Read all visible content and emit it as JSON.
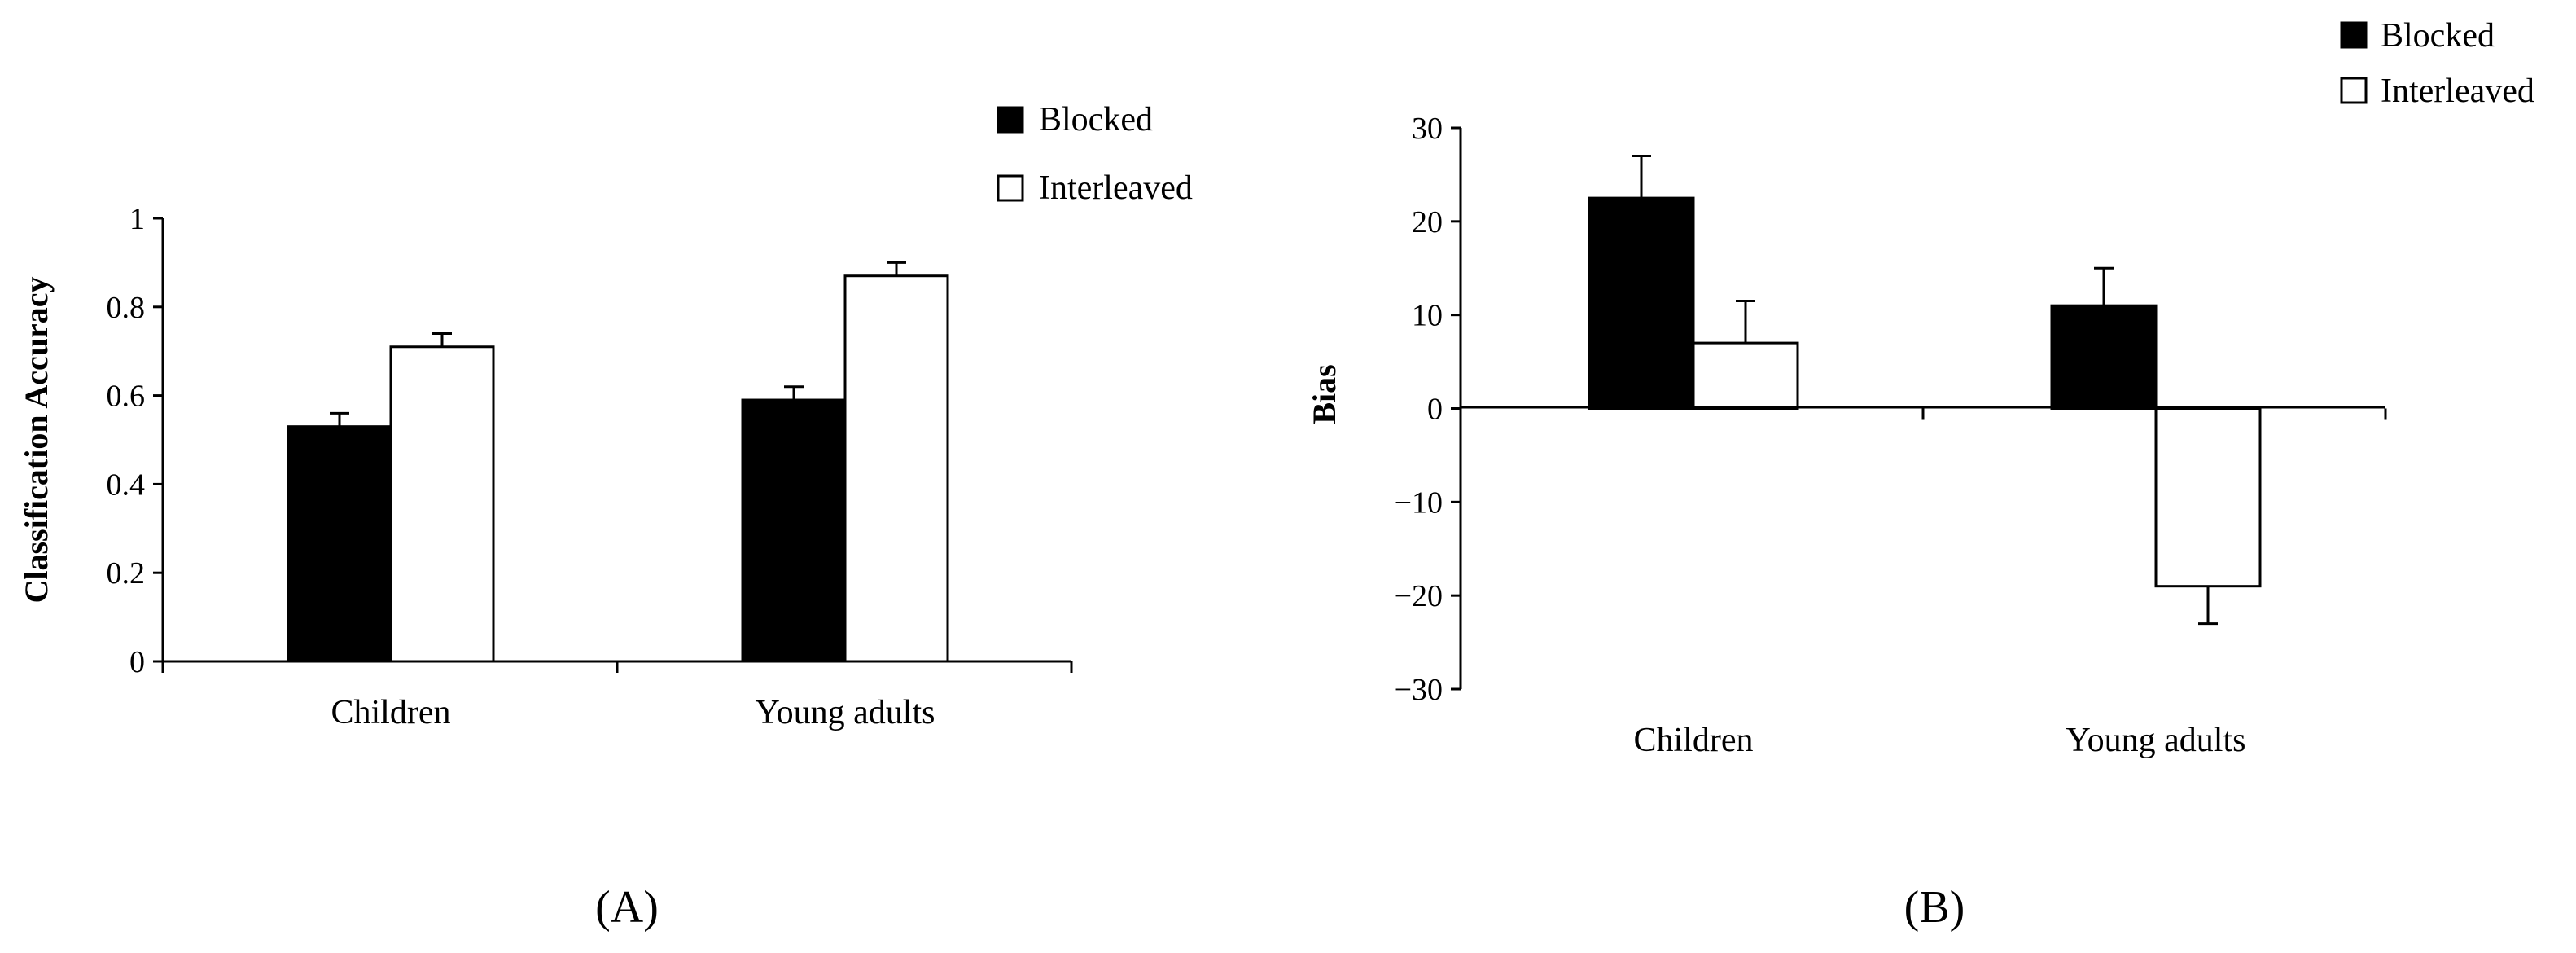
{
  "chart_data": [
    {
      "type": "bar",
      "panel_label": "(A)",
      "title": "",
      "xlabel": "",
      "ylabel": "Classification Accuracy",
      "ylim": [
        0,
        1
      ],
      "yticks": [
        0,
        0.2,
        0.4,
        0.6,
        0.8,
        1
      ],
      "ytick_labels": [
        "0",
        "0.2",
        "0.4",
        "0.6",
        "0.8",
        "1"
      ],
      "categories": [
        "Children",
        "Young adults"
      ],
      "series": [
        {
          "name": "Blocked",
          "color": "#000000",
          "values": [
            0.53,
            0.59
          ],
          "errors": [
            0.03,
            0.03
          ]
        },
        {
          "name": "Interleaved",
          "color": "#ffffff",
          "values": [
            0.71,
            0.87
          ],
          "errors": [
            0.03,
            0.03
          ]
        }
      ],
      "legend": {
        "position": "top-right",
        "entries": [
          "Blocked",
          "Interleaved"
        ]
      }
    },
    {
      "type": "bar",
      "panel_label": "(B)",
      "title": "",
      "xlabel": "",
      "ylabel": "Bias",
      "ylim": [
        -30,
        30
      ],
      "yticks": [
        30,
        20,
        10,
        0,
        -10,
        -20,
        -30
      ],
      "ytick_labels": [
        "30",
        "20",
        "10",
        "0",
        "−10",
        "−20",
        "−30"
      ],
      "categories": [
        "Children",
        "Young adults"
      ],
      "series": [
        {
          "name": "Blocked",
          "color": "#000000",
          "values": [
            22.5,
            11
          ],
          "errors": [
            4.5,
            4
          ]
        },
        {
          "name": "Interleaved",
          "color": "#ffffff",
          "values": [
            7,
            -19
          ],
          "errors": [
            4.5,
            4
          ]
        }
      ],
      "legend": {
        "position": "top-right",
        "entries": [
          "Blocked",
          "Interleaved"
        ]
      }
    }
  ]
}
